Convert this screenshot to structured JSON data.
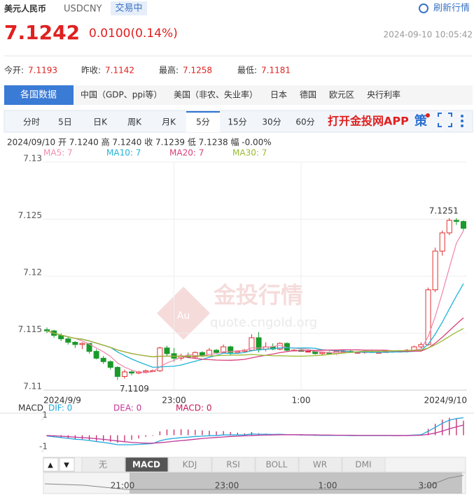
{
  "header": {
    "name": "美元人民币",
    "code": "USDCNY",
    "status": "交易中",
    "refresh": "刷新行情",
    "price": "7.1242",
    "change": "0.0100(0.14%)",
    "time": "2024-09-10 10:05:42"
  },
  "stats": [
    {
      "label": "今开:",
      "value": "7.1193"
    },
    {
      "label": "昨收:",
      "value": "7.1142"
    },
    {
      "label": "最高:",
      "value": "7.1258"
    },
    {
      "label": "最低:",
      "value": "7.1181"
    }
  ],
  "tabs": [
    "各国数据",
    "中国（GDP、ppi等）",
    "美国（非农、失业率）",
    "日本",
    "德国",
    "欧元区",
    "央行利率"
  ],
  "periods": [
    "分时",
    "5日",
    "日K",
    "周K",
    "月K",
    "5分",
    "15分",
    "30分",
    "60分"
  ],
  "app_link": "打开金投网APP",
  "strategy": "策",
  "watermark": {
    "logo": "Au",
    "title": "金投行情",
    "url": "quote.cngold.org"
  },
  "macd_tabs": {
    "arrows": [
      "▲",
      "▼"
    ],
    "items": [
      "无",
      "MACD",
      "KDJ",
      "RSI",
      "BOLL",
      "WR",
      "DMI"
    ]
  },
  "navigator": [
    "21:00",
    "23:00",
    "1:00",
    "3:00"
  ],
  "chart_data": [
    {
      "type": "candlestick",
      "info": "2024/09/10 开 7.1240 高 7.1240 收 7.1239 低 7.1238 幅 -0.00%",
      "categories": [
        "2024/9/9",
        null,
        null,
        null,
        null,
        null,
        null,
        null,
        null,
        null,
        null,
        null,
        null,
        null,
        null,
        null,
        null,
        null,
        "23:00",
        null,
        null,
        null,
        null,
        null,
        null,
        null,
        null,
        null,
        null,
        null,
        null,
        null,
        null,
        null,
        null,
        null,
        "1:00",
        null,
        null,
        null,
        null,
        null,
        null,
        null,
        null,
        null,
        null,
        null,
        null,
        null,
        null,
        null,
        null,
        null,
        null,
        null,
        null,
        null,
        null,
        "2024/9/10"
      ],
      "open": [
        7.1153,
        7.1152,
        7.1148,
        7.1145,
        7.1142,
        7.114,
        7.1141,
        7.1134,
        7.1128,
        7.1125,
        7.112,
        7.1112,
        7.1116,
        7.1115,
        7.1116,
        7.1117,
        7.1117,
        7.1137,
        7.1132,
        7.1128,
        7.113,
        7.1129,
        7.1133,
        7.113,
        7.1135,
        7.1133,
        7.1138,
        7.1133,
        7.1134,
        7.1135,
        7.1146,
        7.1136,
        7.1138,
        7.1136,
        7.1141,
        7.1135,
        7.1135,
        7.1134,
        7.1134,
        7.1132,
        7.1133,
        7.1132,
        7.1134,
        7.1134,
        7.1133,
        7.1133,
        7.1134,
        7.1133,
        7.1133,
        7.1134,
        7.1134,
        7.1134,
        7.1135,
        7.1138,
        7.114,
        7.1188,
        7.1222,
        7.1238,
        7.1249,
        7.1248
      ],
      "high": [
        7.1155,
        7.1153,
        7.115,
        7.1147,
        7.1143,
        7.1142,
        7.1141,
        7.1136,
        7.113,
        7.1126,
        7.1121,
        7.1118,
        7.1118,
        7.1117,
        7.1118,
        7.1118,
        7.1138,
        7.1139,
        7.1137,
        7.1132,
        7.1133,
        7.1134,
        7.1134,
        7.1137,
        7.1136,
        7.114,
        7.1139,
        7.1135,
        7.1136,
        7.1149,
        7.1151,
        7.1142,
        7.1141,
        7.1142,
        7.1142,
        7.1136,
        7.1136,
        7.1135,
        7.1135,
        7.1134,
        7.1134,
        7.1134,
        7.1135,
        7.1135,
        7.1134,
        7.1135,
        7.1135,
        7.1134,
        7.1135,
        7.1135,
        7.1135,
        7.1136,
        7.1139,
        7.1142,
        7.119,
        7.1225,
        7.124,
        7.1251,
        7.1251,
        7.1249
      ],
      "low": [
        7.115,
        7.1146,
        7.1143,
        7.114,
        7.1137,
        7.1136,
        7.1132,
        7.1127,
        7.1123,
        7.1118,
        7.1109,
        7.111,
        7.1113,
        7.1114,
        7.1115,
        7.1116,
        7.1116,
        7.113,
        7.1125,
        7.1126,
        7.1128,
        7.1128,
        7.1129,
        7.113,
        7.1132,
        7.1133,
        7.1131,
        7.1132,
        7.1133,
        7.1134,
        7.1133,
        7.1134,
        7.1135,
        7.1135,
        7.1134,
        7.1134,
        7.1134,
        7.1133,
        7.1131,
        7.1131,
        7.1132,
        7.1131,
        7.1133,
        7.1133,
        7.1132,
        7.1132,
        7.1133,
        7.1132,
        7.1133,
        7.1133,
        7.1133,
        7.1133,
        7.1134,
        7.1136,
        7.1139,
        7.1186,
        7.1218,
        7.1236,
        7.1245,
        7.124
      ],
      "close": [
        7.1152,
        7.1148,
        7.1145,
        7.1142,
        7.114,
        7.1141,
        7.1134,
        7.1128,
        7.1125,
        7.112,
        7.1112,
        7.1116,
        7.1115,
        7.1116,
        7.1117,
        7.1117,
        7.1137,
        7.1132,
        7.1128,
        7.113,
        7.1129,
        7.1133,
        7.113,
        7.1135,
        7.1133,
        7.1138,
        7.1133,
        7.1134,
        7.1135,
        7.1146,
        7.1136,
        7.1138,
        7.1136,
        7.1141,
        7.1135,
        7.1135,
        7.1134,
        7.1134,
        7.1132,
        7.1133,
        7.1132,
        7.1134,
        7.1134,
        7.1133,
        7.1133,
        7.1134,
        7.1133,
        7.1133,
        7.1134,
        7.1134,
        7.1134,
        7.1135,
        7.1138,
        7.114,
        7.1188,
        7.1222,
        7.1238,
        7.1249,
        7.1248,
        7.1242
      ],
      "up_color": "#e03030",
      "down_color": "#1a9a2a",
      "ma": [
        {
          "name": "MA5: 7",
          "color": "#f08cb0"
        },
        {
          "name": "MA10: 7",
          "color": "#22b3d6"
        },
        {
          "name": "MA20: 7",
          "color": "#d9407a"
        },
        {
          "name": "MA30: 7",
          "color": "#9bbb33"
        }
      ],
      "annotations": [
        "7.1251",
        "7.1109"
      ],
      "ylim": [
        7.11,
        7.13
      ],
      "yticks": [
        7.11,
        7.115,
        7.12,
        7.125,
        7.13
      ],
      "grid": true
    },
    {
      "type": "macd",
      "title": "MACD",
      "ylim": [
        -1.3,
        1.3
      ],
      "yticks": [
        1,
        -1
      ],
      "series": [
        {
          "name": "DIF: 0",
          "color": "#1fa8dc",
          "values": [
            -0.05,
            -0.1,
            -0.15,
            -0.2,
            -0.25,
            -0.28,
            -0.33,
            -0.4,
            -0.45,
            -0.52,
            -0.6,
            -0.6,
            -0.6,
            -0.58,
            -0.55,
            -0.52,
            -0.35,
            -0.25,
            -0.2,
            -0.15,
            -0.12,
            -0.08,
            -0.06,
            -0.03,
            -0.02,
            0.02,
            0.02,
            0.02,
            0.02,
            0.08,
            0.06,
            0.06,
            0.05,
            0.06,
            0.04,
            0.03,
            0.02,
            0.01,
            0,
            -0.01,
            -0.01,
            -0.01,
            -0.01,
            -0.02,
            -0.02,
            -0.02,
            -0.02,
            -0.02,
            -0.02,
            -0.02,
            -0.02,
            -0.01,
            0.01,
            0.03,
            0.25,
            0.5,
            0.75,
            0.95,
            1.05,
            1.1
          ]
        },
        {
          "name": "DEA: 0",
          "color": "#c03597",
          "values": [
            -0.02,
            -0.04,
            -0.06,
            -0.09,
            -0.12,
            -0.15,
            -0.18,
            -0.22,
            -0.26,
            -0.31,
            -0.36,
            -0.41,
            -0.45,
            -0.48,
            -0.5,
            -0.5,
            -0.47,
            -0.43,
            -0.38,
            -0.34,
            -0.3,
            -0.25,
            -0.21,
            -0.17,
            -0.14,
            -0.11,
            -0.08,
            -0.06,
            -0.04,
            -0.02,
            0,
            0.01,
            0.02,
            0.03,
            0.03,
            0.03,
            0.03,
            0.02,
            0.02,
            0.01,
            0.01,
            0,
            0,
            0,
            -0.01,
            -0.01,
            -0.01,
            -0.01,
            -0.01,
            -0.02,
            -0.02,
            -0.02,
            -0.01,
            0,
            0.05,
            0.14,
            0.26,
            0.4,
            0.53,
            0.64
          ]
        },
        {
          "name": "MACD: 0",
          "color": "#c2185b",
          "values": [
            -0.06,
            -0.12,
            -0.18,
            -0.22,
            -0.26,
            -0.26,
            -0.3,
            -0.36,
            -0.38,
            -0.42,
            -0.48,
            -0.38,
            -0.3,
            -0.2,
            -0.1,
            -0.04,
            0.24,
            0.36,
            0.36,
            0.38,
            0.36,
            0.34,
            0.3,
            0.28,
            0.24,
            0.26,
            0.2,
            0.16,
            0.12,
            0.2,
            0.12,
            0.1,
            0.06,
            0.06,
            0.02,
            0,
            -0.02,
            -0.02,
            -0.04,
            -0.04,
            -0.04,
            -0.02,
            -0.02,
            -0.04,
            -0.02,
            -0.02,
            -0.02,
            -0.02,
            -0.02,
            0,
            0,
            0.02,
            0.04,
            0.06,
            0.4,
            0.72,
            0.98,
            1.1,
            1.04,
            0.92
          ]
        }
      ]
    }
  ]
}
